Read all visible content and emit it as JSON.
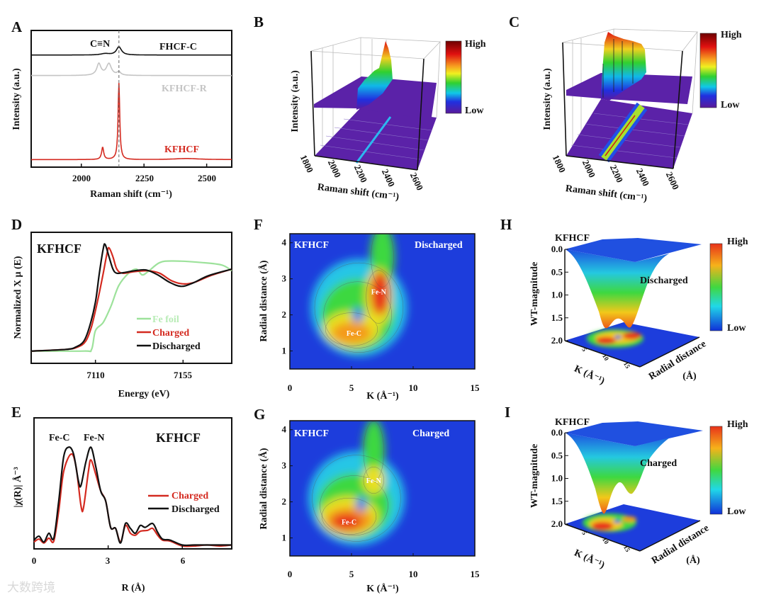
{
  "panel_letters": [
    "A",
    "B",
    "C",
    "D",
    "E",
    "F",
    "G",
    "H",
    "I"
  ],
  "watermark": "大数跨境",
  "colors": {
    "kfhcf_red": "#d42a20",
    "kfhcf_r_gray": "#c4c4c4",
    "black": "#111111",
    "fe_foil": "#9de29b",
    "wt_blue": "#1d3ddc"
  },
  "chart_data": [
    {
      "id": "A",
      "type": "line",
      "xlabel": "Raman shift (cm⁻¹)",
      "ylabel": "Intensity (a.u.)",
      "xlim": [
        1800,
        2600
      ],
      "ylim": [
        0,
        10
      ],
      "xticks": [
        2000,
        2250,
        2500
      ],
      "xtick_labels": [
        "2000",
        "2250",
        "2500"
      ],
      "annotation": "C≡N",
      "reference_line_x": 2150,
      "series": [
        {
          "name": "FHCF-C",
          "color": "#111111",
          "baseline": 8.2,
          "peaks": [
            {
              "center": 2150,
              "height": 0.6,
              "width": 12
            },
            {
              "center": 2095,
              "height": 0.1,
              "width": 20
            }
          ]
        },
        {
          "name": "KFHCF-R",
          "color": "#c4c4c4",
          "baseline": 6.7,
          "peaks": [
            {
              "center": 2070,
              "height": 0.85,
              "width": 10
            },
            {
              "center": 2110,
              "height": 0.85,
              "width": 12
            },
            {
              "center": 2150,
              "height": 0.25,
              "width": 8
            }
          ]
        },
        {
          "name": "KFHCF",
          "color": "#d42a20",
          "baseline": 0.55,
          "peaks": [
            {
              "center": 2150,
              "height": 5.6,
              "width": 4
            },
            {
              "center": 2085,
              "height": 0.9,
              "width": 5
            },
            {
              "center": 2420,
              "height": 0.08,
              "width": 60
            }
          ]
        }
      ]
    },
    {
      "id": "B",
      "type": "surface3d",
      "xlabel": "Raman shift (cm⁻¹)",
      "zlabel": "Intensity (a.u.)",
      "xtick_labels": [
        "1800",
        "2000",
        "2200",
        "2400",
        "2600"
      ],
      "colorbar": {
        "high": "High",
        "low": "Low"
      }
    },
    {
      "id": "C",
      "type": "surface3d",
      "xlabel": "Raman shift (cm⁻¹)",
      "zlabel": "Intensity (a.u.)",
      "xtick_labels": [
        "1800",
        "2000",
        "2200",
        "2400",
        "2600"
      ],
      "colorbar": {
        "high": "High",
        "low": "Low"
      }
    },
    {
      "id": "D",
      "type": "line",
      "title": "KFHCF",
      "xlabel": "Energy (eV)",
      "ylabel": "Normalized X μ (E)",
      "xlim": [
        7077,
        7180
      ],
      "ylim": [
        -0.15,
        1.45
      ],
      "xticks": [
        7110,
        7155
      ],
      "xtick_labels": [
        "7110",
        "7155"
      ],
      "legend": "bottom-right",
      "series": [
        {
          "name": "Fe foil",
          "color": "#9de29b",
          "x": [
            7077,
            7104,
            7108,
            7110,
            7114,
            7118,
            7122,
            7127,
            7131,
            7134,
            7137,
            7143,
            7150,
            7165,
            7175,
            7180
          ],
          "y": [
            0,
            0,
            0.02,
            0.25,
            0.35,
            0.55,
            0.8,
            0.95,
            1.0,
            0.93,
            0.97,
            1.08,
            1.1,
            1.08,
            1.05,
            0.98
          ]
        },
        {
          "name": "Charged",
          "color": "#d42a20",
          "x": [
            7077,
            7095,
            7101,
            7105,
            7108,
            7111,
            7114,
            7116,
            7117,
            7119,
            7121,
            7124,
            7130,
            7137,
            7143,
            7149,
            7155,
            7161,
            7169,
            7180
          ],
          "y": [
            0,
            0.02,
            0.05,
            0.12,
            0.3,
            0.6,
            0.95,
            1.2,
            1.26,
            1.15,
            1.0,
            0.95,
            0.97,
            0.98,
            0.95,
            0.86,
            0.82,
            0.84,
            0.92,
            1.0
          ]
        },
        {
          "name": "Discharged",
          "color": "#111111",
          "x": [
            7077,
            7095,
            7100,
            7104,
            7107,
            7110,
            7112,
            7114,
            7115,
            7117,
            7119,
            7121,
            7125,
            7130,
            7136,
            7142,
            7148,
            7154,
            7160,
            7168,
            7180
          ],
          "y": [
            0,
            0.02,
            0.05,
            0.12,
            0.3,
            0.6,
            0.95,
            1.25,
            1.3,
            1.15,
            1.0,
            0.95,
            0.96,
            0.98,
            0.99,
            0.93,
            0.84,
            0.79,
            0.83,
            0.92,
            1.0
          ]
        }
      ]
    },
    {
      "id": "E",
      "type": "line",
      "title": "KFHCF",
      "xlabel": "R (Å)",
      "ylabel": "|χ(R)| Å⁻³",
      "xlim": [
        0,
        8
      ],
      "ylim": [
        -0.04,
        1.3
      ],
      "xticks": [
        0,
        3,
        6
      ],
      "xtick_labels": [
        "0",
        "3",
        "6"
      ],
      "annotations": [
        "Fe-C",
        "Fe-N"
      ],
      "legend": "right",
      "series": [
        {
          "name": "Charged",
          "color": "#d42a20",
          "x": [
            0,
            0.2,
            0.4,
            0.6,
            0.8,
            1.0,
            1.2,
            1.5,
            1.7,
            1.9,
            2.0,
            2.2,
            2.3,
            2.5,
            2.7,
            2.9,
            3.1,
            3.3,
            3.5,
            3.7,
            3.9,
            4.1,
            4.3,
            4.6,
            4.8,
            5.0,
            5.2,
            5.5,
            6.0,
            6.5,
            7.0,
            7.5,
            8.0
          ],
          "y": [
            0.03,
            0.06,
            0.02,
            0.07,
            0.04,
            0.35,
            0.75,
            0.93,
            0.8,
            0.4,
            0.38,
            0.75,
            0.87,
            0.72,
            0.55,
            0.45,
            0.18,
            0.17,
            0.03,
            0.2,
            0.12,
            0.1,
            0.14,
            0.15,
            0.17,
            0.1,
            0.05,
            0.04,
            -0.01,
            -0.01,
            0,
            -0.01,
            0
          ]
        },
        {
          "name": "Discharged",
          "color": "#111111",
          "x": [
            0,
            0.2,
            0.4,
            0.6,
            0.8,
            1.0,
            1.2,
            1.4,
            1.6,
            1.8,
            1.9,
            2.1,
            2.3,
            2.5,
            2.7,
            2.9,
            3.1,
            3.3,
            3.5,
            3.7,
            3.9,
            4.1,
            4.3,
            4.5,
            4.8,
            5.0,
            5.2,
            5.5,
            6.0,
            6.5,
            7.0,
            7.5,
            8.0
          ],
          "y": [
            0.05,
            0.09,
            0.03,
            0.12,
            0.07,
            0.45,
            0.9,
            1.0,
            0.93,
            0.65,
            0.61,
            0.85,
            1.0,
            0.8,
            0.55,
            0.45,
            0.18,
            0.17,
            0.02,
            0.22,
            0.17,
            0.12,
            0.2,
            0.18,
            0.22,
            0.13,
            0.06,
            0.05,
            0,
            0,
            0,
            0,
            0
          ]
        }
      ]
    },
    {
      "id": "F",
      "type": "heatmap",
      "title": "KFHCF",
      "state": "Discharged",
      "xlabel": "K (Å⁻¹)",
      "ylabel": "Radial distance (Å)",
      "xlim": [
        0,
        15
      ],
      "ylim": [
        0.5,
        4.25
      ],
      "xticks": [
        0,
        5,
        10,
        15
      ],
      "yticks": [
        1,
        2,
        3,
        4
      ],
      "xtick_labels": [
        "0",
        "5",
        "10",
        "15"
      ],
      "ytick_labels": [
        "1",
        "2",
        "3",
        "4"
      ],
      "annotations": [
        {
          "text": "Fe-N",
          "k": 7.2,
          "r": 2.65
        },
        {
          "text": "Fe-C",
          "k": 5.2,
          "r": 1.5
        }
      ],
      "features": [
        {
          "k": 5.6,
          "r": 2.2,
          "sk": 3.9,
          "sr": 1.35,
          "level": 1
        },
        {
          "k": 7.5,
          "r": 3.6,
          "sk": 1.0,
          "sr": 0.9,
          "level": 2
        },
        {
          "k": 5.5,
          "r": 2.0,
          "sk": 3.0,
          "sr": 1.0,
          "level": 2
        },
        {
          "k": 5.0,
          "r": 1.6,
          "sk": 2.3,
          "sr": 0.5,
          "level": 3
        },
        {
          "k": 7.2,
          "r": 2.5,
          "sk": 1.1,
          "sr": 0.8,
          "level": 3
        },
        {
          "k": 5.0,
          "r": 1.5,
          "sk": 1.6,
          "sr": 0.3,
          "level": 4
        },
        {
          "k": 7.3,
          "r": 2.6,
          "sk": 0.75,
          "sr": 0.6,
          "level": 5
        },
        {
          "k": 5.5,
          "r": 2.0,
          "sk": 0.45,
          "sr": 0.2,
          "level": 0
        }
      ]
    },
    {
      "id": "G",
      "type": "heatmap",
      "title": "KFHCF",
      "state": "Charged",
      "xlabel": "K (Å⁻¹)",
      "ylabel": "Radial distance (Å)",
      "xlim": [
        0,
        15
      ],
      "ylim": [
        0.5,
        4.25
      ],
      "xticks": [
        0,
        5,
        10,
        15
      ],
      "yticks": [
        1,
        2,
        3,
        4
      ],
      "xtick_labels": [
        "0",
        "5",
        "10",
        "15"
      ],
      "ytick_labels": [
        "1",
        "2",
        "3",
        "4"
      ],
      "annotations": [
        {
          "text": "Fe-N",
          "k": 6.8,
          "r": 2.6
        },
        {
          "text": "Fe-C",
          "k": 4.8,
          "r": 1.45
        }
      ],
      "features": [
        {
          "k": 5.4,
          "r": 2.1,
          "sk": 3.9,
          "sr": 1.3,
          "level": 1
        },
        {
          "k": 6.8,
          "r": 3.4,
          "sk": 0.9,
          "sr": 0.9,
          "level": 2
        },
        {
          "k": 5.2,
          "r": 1.9,
          "sk": 3.0,
          "sr": 0.9,
          "level": 2
        },
        {
          "k": 6.8,
          "r": 2.6,
          "sk": 0.9,
          "sr": 0.4,
          "level": 3
        },
        {
          "k": 4.8,
          "r": 1.6,
          "sk": 2.4,
          "sr": 0.55,
          "level": 3
        },
        {
          "k": 4.8,
          "r": 1.5,
          "sk": 1.9,
          "sr": 0.35,
          "level": 4
        },
        {
          "k": 4.6,
          "r": 1.45,
          "sk": 1.2,
          "sr": 0.22,
          "level": 5
        },
        {
          "k": 5.8,
          "r": 1.95,
          "sk": 0.45,
          "sr": 0.2,
          "level": 0
        }
      ]
    },
    {
      "id": "H",
      "type": "surface3d",
      "title": "KFHCF",
      "state": "Discharged",
      "zlabel": "WT-magnitude",
      "xlabel": "K (Å⁻¹)",
      "ylabel": "Radial distance",
      "ylabel_unit": "(Å)",
      "zticks": [
        0.0,
        0.5,
        1.0,
        1.5,
        2.0
      ],
      "ztick_labels": [
        "0.0",
        "0.5",
        "1.0",
        "1.5",
        "2.0"
      ],
      "xtick_labels": [
        "5",
        "10",
        "15"
      ],
      "colorbar": {
        "high": "High",
        "low": "Low"
      }
    },
    {
      "id": "I",
      "type": "surface3d",
      "title": "KFHCF",
      "state": "Charged",
      "zlabel": "WT-magnitude",
      "xlabel": "K (Å⁻¹)",
      "ylabel": "Radial distance",
      "ylabel_unit": "(Å)",
      "zticks": [
        0.0,
        0.5,
        1.0,
        1.5,
        2.0
      ],
      "ztick_labels": [
        "0.0",
        "0.5",
        "1.0",
        "1.5",
        "2.0"
      ],
      "xtick_labels": [
        "5",
        "10",
        "15"
      ],
      "colorbar": {
        "high": "High",
        "low": "Low"
      }
    }
  ]
}
